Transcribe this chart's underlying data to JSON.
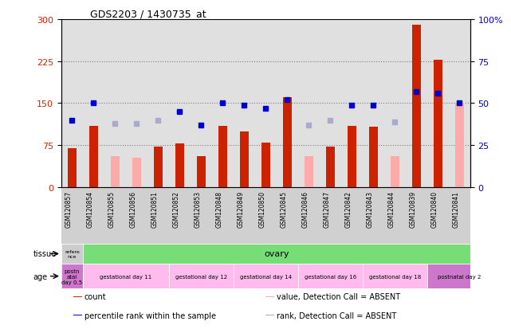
{
  "title": "GDS2203 / 1430735_at",
  "samples": [
    "GSM120857",
    "GSM120854",
    "GSM120855",
    "GSM120856",
    "GSM120851",
    "GSM120852",
    "GSM120853",
    "GSM120848",
    "GSM120849",
    "GSM120850",
    "GSM120845",
    "GSM120846",
    "GSM120847",
    "GSM120842",
    "GSM120843",
    "GSM120844",
    "GSM120839",
    "GSM120840",
    "GSM120841"
  ],
  "count_values": [
    70,
    110,
    null,
    null,
    73,
    78,
    55,
    110,
    100,
    80,
    160,
    null,
    73,
    110,
    108,
    null,
    290,
    228,
    null
  ],
  "count_absent": [
    null,
    null,
    55,
    53,
    null,
    null,
    null,
    null,
    null,
    null,
    null,
    55,
    null,
    null,
    null,
    55,
    null,
    null,
    150
  ],
  "rank_values": [
    40,
    50,
    null,
    null,
    null,
    45,
    37,
    50,
    49,
    47,
    52,
    null,
    null,
    49,
    49,
    null,
    57,
    56,
    50
  ],
  "rank_absent": [
    null,
    null,
    38,
    38,
    40,
    null,
    null,
    null,
    null,
    null,
    null,
    37,
    40,
    null,
    null,
    39,
    null,
    null,
    null
  ],
  "ylim_left": [
    0,
    300
  ],
  "ylim_right": [
    0,
    100
  ],
  "yticks_left": [
    0,
    75,
    150,
    225,
    300
  ],
  "yticks_right": [
    0,
    25,
    50,
    75,
    100
  ],
  "bar_color_present": "#cc2200",
  "bar_color_absent": "#ffaaaa",
  "dot_color_present": "#0000cc",
  "dot_color_absent": "#aaaacc",
  "grid_lines": [
    75,
    150,
    225
  ],
  "tissue_row": {
    "reference_label": "refere\nnce",
    "reference_color": "#cccccc",
    "ovary_label": "ovary",
    "ovary_color": "#77dd77",
    "reference_cols": 1,
    "ovary_cols": 18
  },
  "age_row": {
    "groups": [
      {
        "label": "postn\natal\nday 0.5",
        "color": "#cc77cc",
        "cols": 1
      },
      {
        "label": "gestational day 11",
        "color": "#ffbbee",
        "cols": 4
      },
      {
        "label": "gestational day 12",
        "color": "#ffbbee",
        "cols": 3
      },
      {
        "label": "gestational day 14",
        "color": "#ffbbee",
        "cols": 3
      },
      {
        "label": "gestational day 16",
        "color": "#ffbbee",
        "cols": 3
      },
      {
        "label": "gestational day 18",
        "color": "#ffbbee",
        "cols": 3
      },
      {
        "label": "postnatal day 2",
        "color": "#cc77cc",
        "cols": 3
      }
    ]
  },
  "legend_items": [
    {
      "color": "#cc2200",
      "label": "count"
    },
    {
      "color": "#0000cc",
      "label": "percentile rank within the sample"
    },
    {
      "color": "#ffaaaa",
      "label": "value, Detection Call = ABSENT"
    },
    {
      "color": "#aaaacc",
      "label": "rank, Detection Call = ABSENT"
    }
  ],
  "background_color": "#e0e0e0",
  "axis_label_color_left": "#cc2200",
  "axis_label_color_right": "#0000cc"
}
